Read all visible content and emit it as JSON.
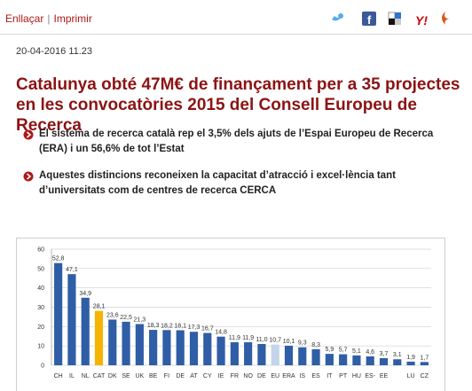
{
  "header": {
    "links": [
      "Enllaçar",
      "Imprimir"
    ],
    "separator": "|"
  },
  "date": "20-04-2016 11.23",
  "title": "Catalunya obté 47M€ de finançament per a 35 projectes en les convocatòries 2015 del Consell Europeu de Recerca",
  "bullets": [
    "El sistema de recerca català rep el 3,5% dels ajuts de l’Espai Europeu de Recerca (ERA) i un 56,6% de tot l’Estat",
    "Aquestes distincions reconeixen la capacitat d’atracció i excel·lència tant d’universitats com de centres de recerca CERCA"
  ],
  "chart_data": {
    "type": "bar",
    "categories": [
      "CH",
      "IL",
      "NL",
      "CAT",
      "DK",
      "SE",
      "UK",
      "BE",
      "FI",
      "DE",
      "AT",
      "CY",
      "IE",
      "FR",
      "NO",
      "DE",
      "EU",
      "ERA",
      "IS",
      "ES",
      "IT",
      "PT",
      "HU",
      "ES-",
      "EE",
      null,
      "LU",
      "CZ"
    ],
    "values": [
      52.8,
      47.1,
      34.9,
      28.1,
      23.6,
      22.5,
      21.3,
      18.3,
      18.2,
      18.1,
      17.3,
      16.7,
      14.8,
      11.9,
      11.9,
      11.0,
      10.7,
      10.1,
      9.3,
      8.3,
      5.9,
      5.7,
      5.1,
      4.6,
      3.7,
      3.1,
      1.9,
      1.7
    ],
    "value_labels": [
      "52,8",
      "47,1",
      "34,9",
      "28,1",
      "23,6",
      "22,5",
      "21,3",
      "18,3",
      "18,2",
      "18,1",
      "17,3",
      "16,7",
      "14,8",
      "11,9",
      "11,9",
      "11,0",
      "10,7",
      "10,1",
      "9,3",
      "8,3",
      "5,9",
      "5,7",
      "5,1",
      "4,6",
      "3,7",
      "3,1",
      "1,9",
      "1,7"
    ],
    "colors": [
      "#2f5ea6",
      "#2f5ea6",
      "#2f5ea6",
      "#f4b400",
      "#2f5ea6",
      "#2f5ea6",
      "#2f5ea6",
      "#2f5ea6",
      "#2f5ea6",
      "#2f5ea6",
      "#2f5ea6",
      "#2f5ea6",
      "#2f5ea6",
      "#2f5ea6",
      "#2f5ea6",
      "#2f5ea6",
      "#c4d4ea",
      "#2f5ea6",
      "#2f5ea6",
      "#2f5ea6",
      "#2f5ea6",
      "#2f5ea6",
      "#2f5ea6",
      "#2f5ea6",
      "#2f5ea6",
      "#2f5ea6",
      "#2f5ea6",
      "#2f5ea6"
    ],
    "ylim": [
      0,
      60
    ],
    "yticks": [
      0,
      10,
      20,
      30,
      40,
      50,
      60
    ],
    "grid": true
  }
}
